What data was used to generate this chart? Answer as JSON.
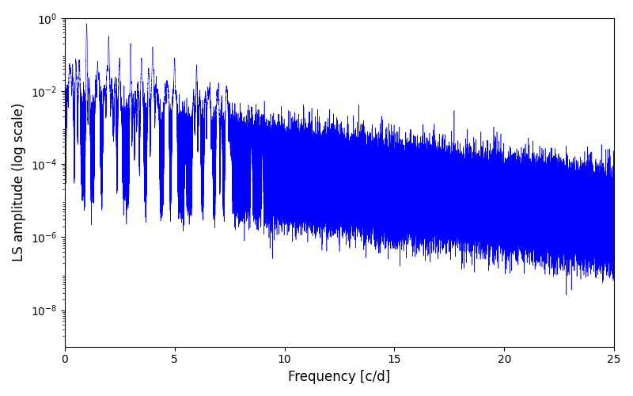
{
  "title": "",
  "xlabel": "Frequency [c/d]",
  "ylabel": "LS amplitude (log scale)",
  "xlim": [
    0,
    25
  ],
  "ylim_log": [
    1e-09,
    1.0
  ],
  "line_color": "#0000ff",
  "line_width": 0.4,
  "figsize": [
    8.0,
    5.0
  ],
  "dpi": 100,
  "background_color": "#ffffff",
  "seed": 42,
  "n_points": 200000,
  "freq_max": 25.0,
  "yticks": [
    1e-08,
    1e-06,
    0.0001,
    0.01,
    1.0
  ]
}
